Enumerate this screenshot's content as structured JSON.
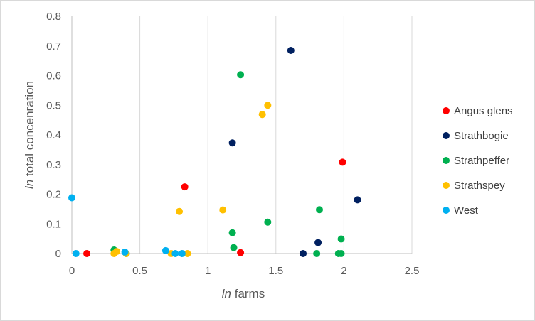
{
  "chart_data": {
    "type": "scatter",
    "xlabel_prefix": "ln",
    "xlabel_rest": " farms",
    "ylabel_prefix": "ln",
    "ylabel_rest": " total concenration",
    "xlim": [
      0,
      2.5
    ],
    "ylim": [
      0,
      0.8
    ],
    "x_ticks": [
      0,
      0.5,
      1,
      1.5,
      2,
      2.5
    ],
    "x_tick_labels": [
      "0",
      "0.5",
      "1",
      "1.5",
      "2",
      "2.5"
    ],
    "y_ticks": [
      0,
      0.1,
      0.2,
      0.3,
      0.4,
      0.5,
      0.6,
      0.7,
      0.8
    ],
    "y_tick_labels": [
      "0",
      "0.1",
      "0.2",
      "0.3",
      "0.4",
      "0.5",
      "0.6",
      "0.7",
      "0.8"
    ],
    "grid": "vertical",
    "legend_position": "right",
    "series": [
      {
        "name": "Angus glens",
        "color": "#ff0000",
        "points": [
          [
            0.11,
            0.0
          ],
          [
            0.83,
            0.225
          ],
          [
            1.24,
            0.003
          ],
          [
            1.99,
            0.308
          ]
        ]
      },
      {
        "name": "Strathbogie",
        "color": "#002060",
        "points": [
          [
            1.18,
            0.373
          ],
          [
            1.61,
            0.685
          ],
          [
            1.7,
            0.0
          ],
          [
            1.81,
            0.037
          ],
          [
            2.1,
            0.181
          ]
        ]
      },
      {
        "name": "Strathpeffer",
        "color": "#00b050",
        "points": [
          [
            0.31,
            0.012
          ],
          [
            0.4,
            0.0
          ],
          [
            1.18,
            0.07
          ],
          [
            1.19,
            0.02
          ],
          [
            1.24,
            0.603
          ],
          [
            1.44,
            0.106
          ],
          [
            1.8,
            0.0
          ],
          [
            1.82,
            0.148
          ],
          [
            1.96,
            0.0
          ],
          [
            1.98,
            0.0
          ],
          [
            1.98,
            0.049
          ]
        ]
      },
      {
        "name": "Strathspey",
        "color": "#ffc000",
        "points": [
          [
            0.31,
            0.0
          ],
          [
            0.33,
            0.007
          ],
          [
            0.4,
            0.0
          ],
          [
            0.73,
            0.0
          ],
          [
            0.79,
            0.142
          ],
          [
            0.85,
            0.0
          ],
          [
            1.11,
            0.147
          ],
          [
            1.4,
            0.469
          ],
          [
            1.44,
            0.5
          ]
        ]
      },
      {
        "name": "West",
        "color": "#00b0f0",
        "points": [
          [
            0.0,
            0.188
          ],
          [
            0.03,
            0.0
          ],
          [
            0.39,
            0.005
          ],
          [
            0.69,
            0.01
          ],
          [
            0.76,
            0.0
          ],
          [
            0.81,
            0.0
          ]
        ]
      }
    ]
  }
}
